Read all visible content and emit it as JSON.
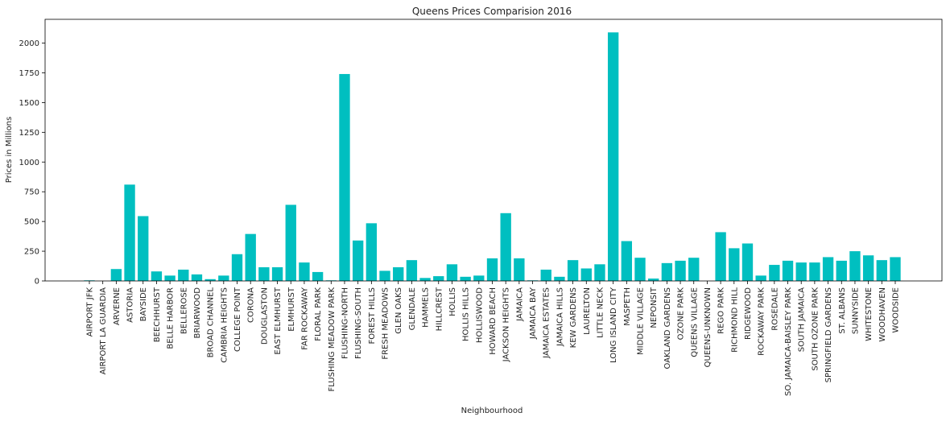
{
  "chart_data": {
    "type": "bar",
    "title": "Queens Prices Comparision 2016",
    "xlabel": "Neighbourhood",
    "ylabel": "Prices in Millions",
    "ylim": [
      0,
      2200
    ],
    "yticks": [
      0,
      250,
      500,
      750,
      1000,
      1250,
      1500,
      1750,
      2000
    ],
    "grid": false,
    "bar_color": "#00bfc0",
    "categories": [
      "AIRPORT JFK",
      "AIRPORT LA GUARDIA",
      "ARVERNE",
      "ASTORIA",
      "BAYSIDE",
      "BEECHHURST",
      "BELLE HARBOR",
      "BELLEROSE",
      "BRIARWOOD",
      "BROAD CHANNEL",
      "CAMBRIA HEIGHTS",
      "COLLEGE POINT",
      "CORONA",
      "DOUGLASTON",
      "EAST ELMHURST",
      "ELMHURST",
      "FAR ROCKAWAY",
      "FLORAL PARK",
      "FLUSHING MEADOW PARK",
      "FLUSHING-NORTH",
      "FLUSHING-SOUTH",
      "FOREST HILLS",
      "FRESH MEADOWS",
      "GLEN OAKS",
      "GLENDALE",
      "HAMMELS",
      "HILLCREST",
      "HOLLIS",
      "HOLLIS HILLS",
      "HOLLISWOOD",
      "HOWARD BEACH",
      "JACKSON HEIGHTS",
      "JAMAICA",
      "JAMAICA BAY",
      "JAMAICA ESTATES",
      "JAMAICA HILLS",
      "KEW GARDENS",
      "LAURELTON",
      "LITTLE NECK",
      "LONG ISLAND CITY",
      "MASPETH",
      "MIDDLE VILLAGE",
      "NEPONSIT",
      "OAKLAND GARDENS",
      "OZONE PARK",
      "QUEENS VILLAGE",
      "QUEENS-UNKNOWN",
      "REGO PARK",
      "RICHMOND HILL",
      "RIDGEWOOD",
      "ROCKAWAY PARK",
      "ROSEDALE",
      "SO. JAMAICA-BAISLEY PARK",
      "SOUTH JAMAICA",
      "SOUTH OZONE PARK",
      "SPRINGFIELD GARDENS",
      "ST. ALBANS",
      "SUNNYSIDE",
      "WHITESTONE",
      "WOODHAVEN",
      "WOODSIDE"
    ],
    "values": [
      5,
      0,
      100,
      810,
      545,
      80,
      45,
      95,
      55,
      15,
      45,
      225,
      395,
      115,
      115,
      640,
      155,
      75,
      5,
      1740,
      340,
      485,
      85,
      115,
      175,
      25,
      40,
      140,
      35,
      45,
      190,
      570,
      190,
      5,
      95,
      35,
      175,
      105,
      140,
      2090,
      335,
      195,
      20,
      150,
      170,
      195,
      0,
      410,
      275,
      315,
      45,
      135,
      170,
      155,
      155,
      200,
      170,
      250,
      215,
      175,
      200
    ]
  }
}
